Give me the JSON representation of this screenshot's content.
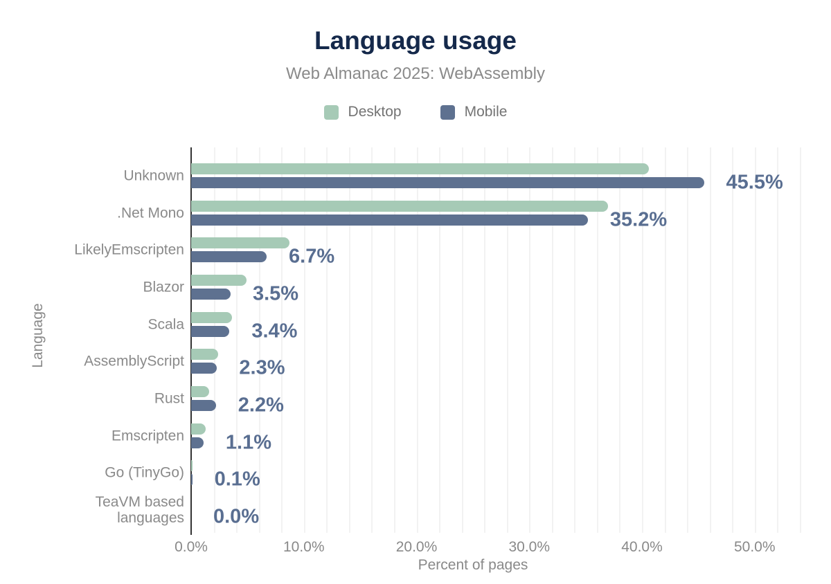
{
  "title": "Language usage",
  "subtitle": "Web Almanac 2025: WebAssembly",
  "legend": {
    "items": [
      {
        "label": "Desktop",
        "color": "#a6cab6"
      },
      {
        "label": "Mobile",
        "color": "#5e7190"
      }
    ]
  },
  "axes": {
    "xlabel": "Percent of pages",
    "ylabel": "Language"
  },
  "colors": {
    "background": "#ffffff",
    "title": "#15294b",
    "subtitle": "#8a8a8a",
    "axis_text": "#898989",
    "axis_line": "#333333",
    "gridline": "#f2f2f2",
    "data_label": "#596e91",
    "desktop_bar": "#a6cab6",
    "mobile_bar": "#5e7190"
  },
  "chart_data": {
    "type": "bar",
    "orientation": "horizontal",
    "title": "Language usage",
    "subtitle": "Web Almanac 2025: WebAssembly",
    "xlabel": "Percent of pages",
    "ylabel": "Language",
    "xlim": [
      0,
      54.5
    ],
    "xticks": [
      0,
      10,
      20,
      30,
      40,
      50
    ],
    "xtick_labels": [
      "0.0%",
      "10.0%",
      "20.0%",
      "30.0%",
      "40.0%",
      "50.0%"
    ],
    "grid": "vertical gridlines every 2%",
    "legend_position": "top",
    "categories": [
      "Unknown",
      ".Net Mono",
      "LikelyEmscripten",
      "Blazor",
      "Scala",
      "AssemblyScript",
      "Rust",
      "Emscripten",
      "Go (TinyGo)",
      "TeaVM based languages"
    ],
    "series": [
      {
        "name": "Desktop",
        "color": "#a6cab6",
        "values": [
          40.6,
          37.0,
          8.7,
          4.9,
          3.6,
          2.4,
          1.6,
          1.3,
          0.1,
          0.0
        ]
      },
      {
        "name": "Mobile",
        "color": "#5e7190",
        "values": [
          45.5,
          35.2,
          6.7,
          3.5,
          3.4,
          2.3,
          2.2,
          1.1,
          0.1,
          0.0
        ]
      }
    ],
    "data_labels": {
      "labeled_series": "Mobile",
      "values": [
        "45.5%",
        "35.2%",
        "6.7%",
        "3.5%",
        "3.4%",
        "2.3%",
        "2.2%",
        "1.1%",
        "0.1%",
        "0.0%"
      ]
    }
  }
}
